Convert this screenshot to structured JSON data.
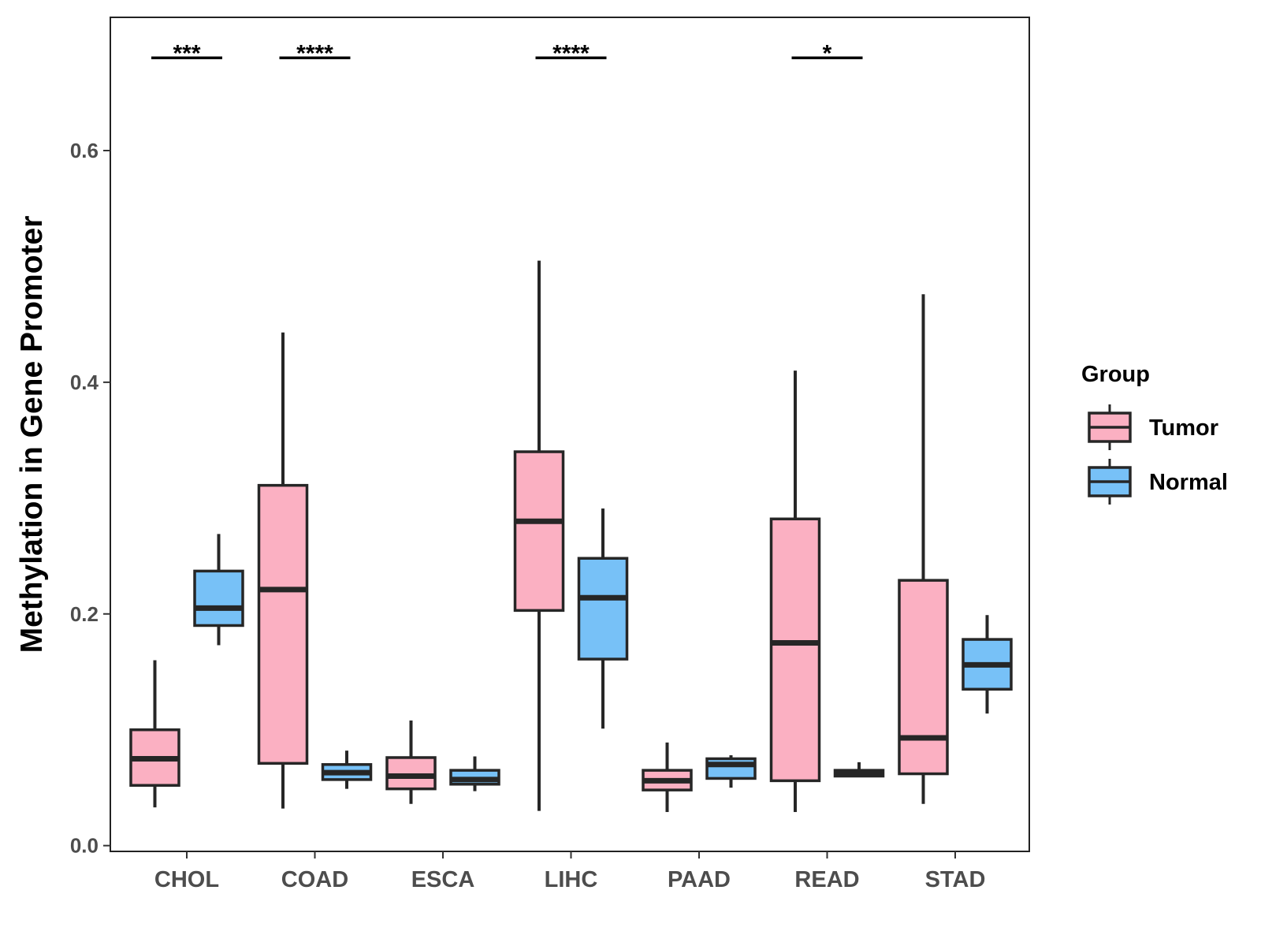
{
  "chart_data": {
    "type": "boxplot",
    "title": "",
    "xlabel": "",
    "ylabel": "Methylation in Gene Promoter",
    "ylim": [
      -0.005,
      0.715
    ],
    "yticks": [
      0.0,
      0.2,
      0.4,
      0.6
    ],
    "ytick_labels": [
      "0.0",
      "0.2",
      "0.4",
      "0.6"
    ],
    "grid": false,
    "categories": [
      "CHOL",
      "COAD",
      "ESCA",
      "LIHC",
      "PAAD",
      "READ",
      "STAD"
    ],
    "legend": {
      "title": "Group",
      "position": "right",
      "entries": [
        {
          "name": "Tumor",
          "color": "#FBB0C2"
        },
        {
          "name": "Normal",
          "color": "#77C1F7"
        }
      ]
    },
    "series": [
      {
        "name": "Tumor",
        "color": "#FBB0C2",
        "boxes": [
          {
            "min": 0.033,
            "q1": 0.052,
            "median": 0.075,
            "q3": 0.1,
            "max": 0.16
          },
          {
            "min": 0.032,
            "q1": 0.071,
            "median": 0.221,
            "q3": 0.311,
            "max": 0.443
          },
          {
            "min": 0.036,
            "q1": 0.049,
            "median": 0.06,
            "q3": 0.076,
            "max": 0.108
          },
          {
            "min": 0.03,
            "q1": 0.203,
            "median": 0.28,
            "q3": 0.34,
            "max": 0.505
          },
          {
            "min": 0.029,
            "q1": 0.048,
            "median": 0.056,
            "q3": 0.065,
            "max": 0.089
          },
          {
            "min": 0.029,
            "q1": 0.056,
            "median": 0.175,
            "q3": 0.282,
            "max": 0.41
          },
          {
            "min": 0.036,
            "q1": 0.062,
            "median": 0.093,
            "q3": 0.229,
            "max": 0.476
          }
        ]
      },
      {
        "name": "Normal",
        "color": "#77C1F7",
        "boxes": [
          {
            "min": 0.173,
            "q1": 0.19,
            "median": 0.205,
            "q3": 0.237,
            "max": 0.269
          },
          {
            "min": 0.049,
            "q1": 0.057,
            "median": 0.063,
            "q3": 0.07,
            "max": 0.082
          },
          {
            "min": 0.047,
            "q1": 0.053,
            "median": 0.057,
            "q3": 0.065,
            "max": 0.077
          },
          {
            "min": 0.101,
            "q1": 0.161,
            "median": 0.214,
            "q3": 0.248,
            "max": 0.291
          },
          {
            "min": 0.05,
            "q1": 0.058,
            "median": 0.07,
            "q3": 0.075,
            "max": 0.078
          },
          {
            "min": 0.059,
            "q1": 0.06,
            "median": 0.062,
            "q3": 0.065,
            "max": 0.072
          },
          {
            "min": 0.114,
            "q1": 0.135,
            "median": 0.156,
            "q3": 0.178,
            "max": 0.199
          }
        ]
      }
    ],
    "significance": [
      {
        "category": "CHOL",
        "label": "***"
      },
      {
        "category": "COAD",
        "label": "****"
      },
      {
        "category": "LIHC",
        "label": "****"
      },
      {
        "category": "READ",
        "label": "*"
      }
    ],
    "significance_level": 0.68
  }
}
